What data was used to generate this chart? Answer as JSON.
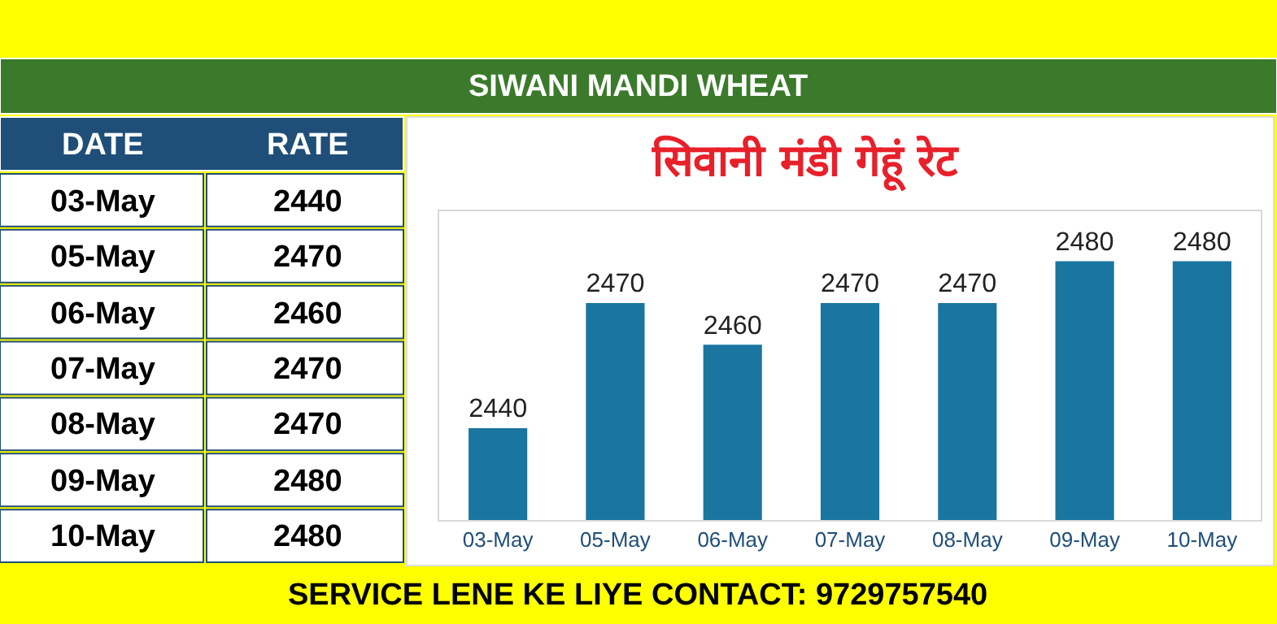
{
  "chart_data": [
    {
      "type": "other",
      "categories": [
        "03-May",
        "05-May",
        "06-May",
        "07-May",
        "08-May",
        "09-May",
        "10-May"
      ],
      "values": [
        2440,
        2470,
        2460,
        2470,
        2470,
        2480,
        2480
      ],
      "value_labels": [
        "2440",
        "2470",
        "2460",
        "2470",
        "2470",
        "2480",
        "2480"
      ],
      "data_labels": true,
      "annotations": [
        "DATE",
        "RATE"
      ]
    },
    {
      "type": "bar",
      "title": "सिवानी मंडी गेहूं रेट",
      "subtitle": "SIWANI MANDI WHEAT",
      "categories": [
        "03-May",
        "05-May",
        "06-May",
        "07-May",
        "08-May",
        "09-May",
        "10-May"
      ],
      "values": [
        2440,
        2470,
        2460,
        2470,
        2470,
        2480,
        2480
      ],
      "color": "#1a75a0",
      "ylim": [
        2418,
        2492
      ],
      "data_labels": true,
      "legend": false,
      "annotations": [
        "SERVICE LENE KE LIYE CONTACT: 9729757540"
      ]
    }
  ]
}
